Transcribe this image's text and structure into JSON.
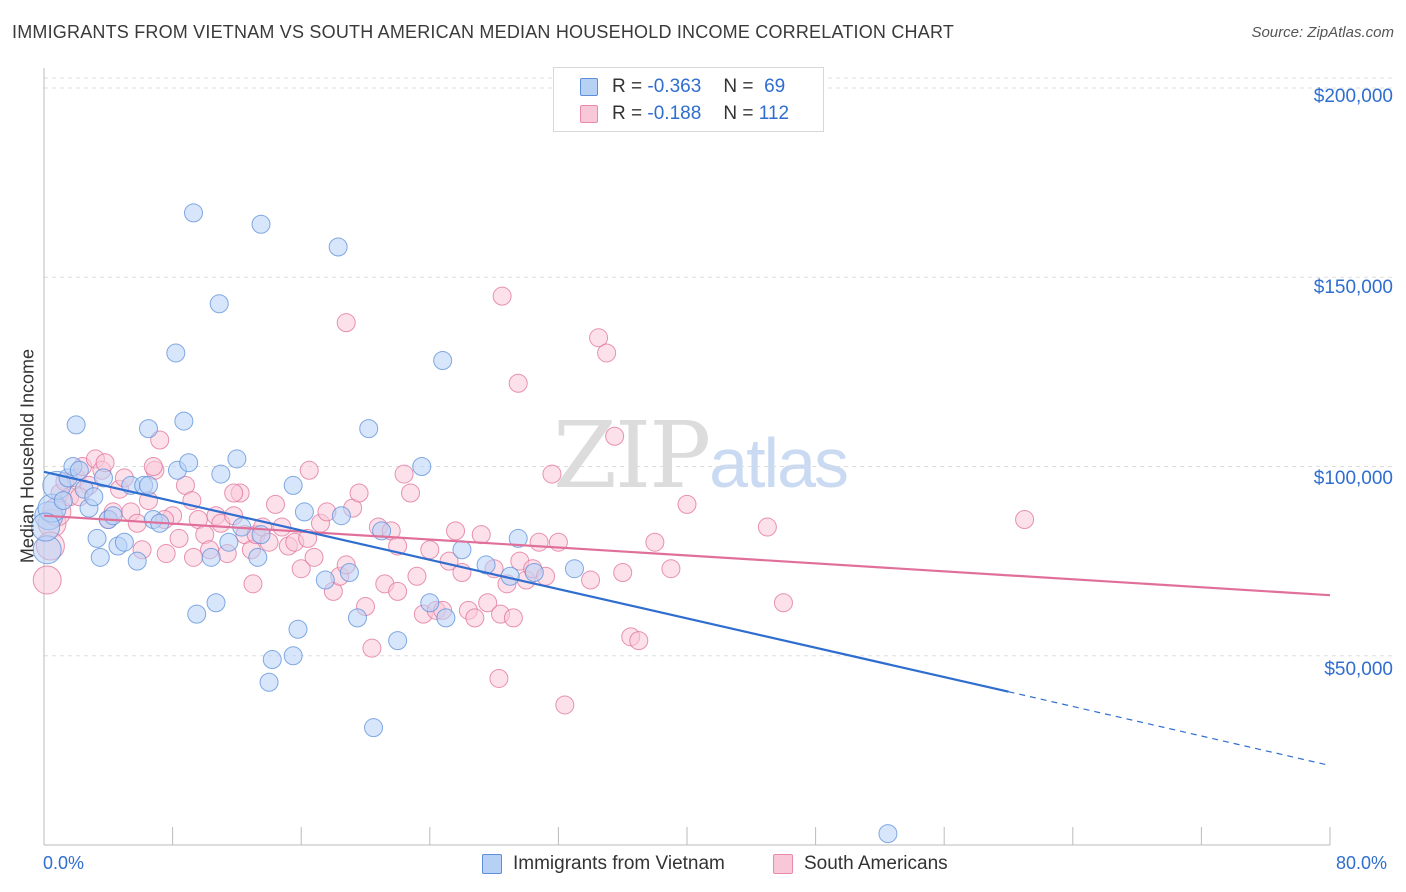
{
  "title": "IMMIGRANTS FROM VIETNAM VS SOUTH AMERICAN MEDIAN HOUSEHOLD INCOME CORRELATION CHART",
  "source": "Source: ZipAtlas.com",
  "watermark": {
    "zip": "ZIP",
    "atlas": "atlas"
  },
  "legend": {
    "r_label": "R =",
    "n_label": "N =",
    "rows": [
      {
        "r": "-0.363",
        "n": "69",
        "fill": "#b7d1f5",
        "stroke": "#5b8fd9"
      },
      {
        "r": "-0.188",
        "n": "112",
        "fill": "#f9c8d8",
        "stroke": "#e88aaa"
      }
    ]
  },
  "bottom_legend": [
    {
      "label": "Immigrants from Vietnam",
      "fill": "#b7d1f5",
      "stroke": "#5b8fd9"
    },
    {
      "label": "South Americans",
      "fill": "#f9c8d8",
      "stroke": "#e88aaa"
    }
  ],
  "chart_data": {
    "type": "scatter",
    "title": "IMMIGRANTS FROM VIETNAM VS SOUTH AMERICAN MEDIAN HOUSEHOLD INCOME CORRELATION CHART",
    "xlabel": "",
    "ylabel": "Median Household Income",
    "xlim": [
      0,
      80
    ],
    "ylim": [
      0,
      200000
    ],
    "x_tick_labels": [
      "0.0%",
      "80.0%"
    ],
    "y_tick_labels": [
      "$50,000",
      "$100,000",
      "$150,000",
      "$200,000"
    ],
    "y_ticks": [
      50000,
      100000,
      150000,
      200000
    ],
    "grid": true,
    "legend_position": "top-center",
    "series": [
      {
        "name": "Immigrants from Vietnam",
        "color": "#5b8fd9",
        "fill": "#b7d1f5",
        "r": -0.363,
        "n": 69,
        "trend": {
          "x0": 0,
          "y0": 98600,
          "x1": 60,
          "y1": 40500,
          "dash_to_x": 80,
          "dash_to_y": 21000
        },
        "points": [
          [
            0.3,
            87000
          ],
          [
            0.5,
            89000
          ],
          [
            0.8,
            95000
          ],
          [
            1.2,
            91000
          ],
          [
            1.5,
            97000
          ],
          [
            1.8,
            100000
          ],
          [
            2.2,
            99000
          ],
          [
            2.5,
            94000
          ],
          [
            2.8,
            89000
          ],
          [
            3.1,
            92000
          ],
          [
            3.3,
            81000
          ],
          [
            3.5,
            76000
          ],
          [
            3.7,
            97000
          ],
          [
            4.0,
            86000
          ],
          [
            4.3,
            87000
          ],
          [
            4.6,
            79000
          ],
          [
            5.0,
            80000
          ],
          [
            5.4,
            95000
          ],
          [
            5.8,
            75000
          ],
          [
            6.2,
            95000
          ],
          [
            6.5,
            95000
          ],
          [
            6.8,
            86000
          ],
          [
            7.2,
            85000
          ],
          [
            8.3,
            99000
          ],
          [
            9.5,
            61000
          ],
          [
            10.4,
            76000
          ],
          [
            10.7,
            64000
          ],
          [
            11.0,
            98000
          ],
          [
            11.5,
            80000
          ],
          [
            12.3,
            84000
          ],
          [
            13.3,
            76000
          ],
          [
            13.5,
            82000
          ],
          [
            14.2,
            49000
          ],
          [
            15.5,
            95000
          ],
          [
            15.8,
            57000
          ],
          [
            16.2,
            88000
          ],
          [
            17.5,
            70000
          ],
          [
            18.5,
            87000
          ],
          [
            19.0,
            72000
          ],
          [
            19.5,
            60000
          ],
          [
            20.2,
            110000
          ],
          [
            21.0,
            83000
          ],
          [
            22.0,
            54000
          ],
          [
            23.5,
            100000
          ],
          [
            24.0,
            64000
          ],
          [
            25.0,
            60000
          ],
          [
            26.0,
            78000
          ],
          [
            27.5,
            74000
          ],
          [
            29.0,
            71000
          ],
          [
            29.5,
            81000
          ],
          [
            30.5,
            72000
          ],
          [
            33.0,
            73000
          ],
          [
            15.5,
            50000
          ],
          [
            14.0,
            43000
          ],
          [
            12.0,
            102000
          ],
          [
            9.0,
            101000
          ],
          [
            8.2,
            130000
          ],
          [
            8.7,
            112000
          ],
          [
            6.5,
            110000
          ],
          [
            2.0,
            111000
          ],
          [
            10.9,
            143000
          ],
          [
            9.3,
            167000
          ],
          [
            13.5,
            164000
          ],
          [
            18.3,
            158000
          ],
          [
            24.8,
            128000
          ],
          [
            20.5,
            31000
          ],
          [
            52.5,
            3000
          ],
          [
            0.2,
            78000
          ],
          [
            0.1,
            84000
          ]
        ]
      },
      {
        "name": "South Americans",
        "color": "#e0709a",
        "fill": "#f9c8d8",
        "r": -0.188,
        "n": 112,
        "trend": {
          "x0": 0,
          "y0": 87000,
          "x1": 80,
          "y1": 66000
        },
        "points": [
          [
            0.2,
            70000
          ],
          [
            0.5,
            85000
          ],
          [
            0.8,
            88000
          ],
          [
            1.0,
            93000
          ],
          [
            1.3,
            96000
          ],
          [
            1.6,
            92000
          ],
          [
            2.0,
            97000
          ],
          [
            2.4,
            100000
          ],
          [
            2.8,
            95000
          ],
          [
            3.2,
            102000
          ],
          [
            3.6,
            99000
          ],
          [
            4.0,
            86000
          ],
          [
            4.3,
            88000
          ],
          [
            4.7,
            94000
          ],
          [
            5.0,
            97000
          ],
          [
            5.4,
            88000
          ],
          [
            5.8,
            85000
          ],
          [
            6.1,
            78000
          ],
          [
            6.5,
            91000
          ],
          [
            6.9,
            99000
          ],
          [
            7.2,
            107000
          ],
          [
            7.6,
            77000
          ],
          [
            8.0,
            87000
          ],
          [
            8.4,
            81000
          ],
          [
            8.8,
            95000
          ],
          [
            9.2,
            91000
          ],
          [
            9.6,
            86000
          ],
          [
            10.0,
            82000
          ],
          [
            10.3,
            78000
          ],
          [
            10.7,
            87000
          ],
          [
            11.0,
            85000
          ],
          [
            11.4,
            77000
          ],
          [
            11.8,
            87000
          ],
          [
            12.2,
            93000
          ],
          [
            12.5,
            82000
          ],
          [
            12.9,
            78000
          ],
          [
            13.2,
            82000
          ],
          [
            13.6,
            84000
          ],
          [
            14.0,
            80000
          ],
          [
            14.4,
            90000
          ],
          [
            14.8,
            84000
          ],
          [
            15.2,
            79000
          ],
          [
            15.6,
            80000
          ],
          [
            16.0,
            73000
          ],
          [
            16.4,
            81000
          ],
          [
            16.8,
            76000
          ],
          [
            17.2,
            85000
          ],
          [
            17.6,
            88000
          ],
          [
            18.0,
            67000
          ],
          [
            18.4,
            71000
          ],
          [
            18.8,
            74000
          ],
          [
            19.2,
            89000
          ],
          [
            19.6,
            93000
          ],
          [
            20.0,
            63000
          ],
          [
            20.4,
            52000
          ],
          [
            20.8,
            84000
          ],
          [
            21.2,
            69000
          ],
          [
            21.6,
            83000
          ],
          [
            22.0,
            79000
          ],
          [
            22.4,
            98000
          ],
          [
            22.8,
            93000
          ],
          [
            23.2,
            71000
          ],
          [
            23.6,
            61000
          ],
          [
            24.0,
            78000
          ],
          [
            24.4,
            62000
          ],
          [
            24.8,
            62000
          ],
          [
            25.2,
            75000
          ],
          [
            25.6,
            83000
          ],
          [
            26.0,
            72000
          ],
          [
            26.4,
            62000
          ],
          [
            26.8,
            60000
          ],
          [
            27.2,
            82000
          ],
          [
            27.6,
            64000
          ],
          [
            28.0,
            73000
          ],
          [
            28.4,
            61000
          ],
          [
            28.8,
            69000
          ],
          [
            29.2,
            60000
          ],
          [
            29.6,
            75000
          ],
          [
            30.0,
            70000
          ],
          [
            30.4,
            73000
          ],
          [
            30.8,
            80000
          ],
          [
            31.2,
            71000
          ],
          [
            31.6,
            98000
          ],
          [
            32.0,
            80000
          ],
          [
            32.4,
            37000
          ],
          [
            34.0,
            70000
          ],
          [
            34.5,
            134000
          ],
          [
            35.0,
            130000
          ],
          [
            35.5,
            108000
          ],
          [
            36.0,
            72000
          ],
          [
            36.5,
            55000
          ],
          [
            37.0,
            54000
          ],
          [
            38.0,
            80000
          ],
          [
            39.0,
            73000
          ],
          [
            40.0,
            90000
          ],
          [
            45.0,
            84000
          ],
          [
            46.0,
            64000
          ],
          [
            61.0,
            86000
          ],
          [
            28.5,
            145000
          ],
          [
            29.5,
            122000
          ],
          [
            18.8,
            138000
          ],
          [
            28.3,
            44000
          ],
          [
            13.0,
            69000
          ],
          [
            11.8,
            93000
          ],
          [
            9.3,
            76000
          ],
          [
            7.5,
            86000
          ],
          [
            6.8,
            100000
          ],
          [
            3.8,
            101000
          ],
          [
            2.2,
            92000
          ],
          [
            0.4,
            79000
          ],
          [
            16.5,
            99000
          ],
          [
            22.0,
            67000
          ]
        ]
      }
    ]
  }
}
